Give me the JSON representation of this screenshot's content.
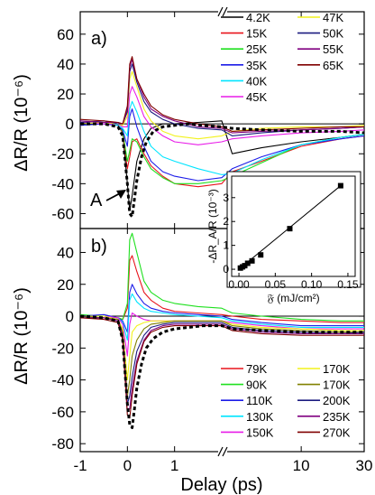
{
  "chart_data": [
    {
      "type": "line",
      "panel_label": "a)",
      "xlabel": "Delay (ps)",
      "ylabel": "ΔR/R (10⁻⁶)",
      "ylim": [
        -70,
        75
      ],
      "yticks": [
        60,
        40,
        20,
        0,
        -20,
        -40,
        -60
      ],
      "xticks_linear": [
        -1,
        0,
        1
      ],
      "xticks_log": [
        10,
        30
      ],
      "xlim_linear": [
        -1,
        2.0
      ],
      "xlim_log": [
        2.5,
        30
      ],
      "annotation": "A",
      "legend_position": "top-right",
      "series": [
        {
          "name": "4.2K",
          "color": "#000000",
          "x": [
            -1,
            -0.5,
            -0.2,
            -0.1,
            0,
            0.05,
            0.1,
            0.2,
            0.35,
            0.5,
            0.75,
            1,
            1.5,
            2,
            3,
            5,
            10,
            20,
            30
          ],
          "y": [
            0,
            0,
            -1,
            -6,
            -40,
            -58,
            -48,
            -25,
            -10,
            -3,
            0,
            0,
            1,
            2,
            -20,
            -16,
            -12,
            -9,
            -7
          ]
        },
        {
          "name": "15K",
          "color": "#e8141c",
          "x": [
            -1,
            -0.5,
            -0.2,
            -0.1,
            0,
            0.05,
            0.1,
            0.2,
            0.35,
            0.5,
            0.75,
            1,
            1.5,
            2,
            3,
            5,
            10,
            20,
            30
          ],
          "y": [
            1,
            0,
            -1,
            -6,
            -30,
            -22,
            -12,
            -10,
            -20,
            -28,
            -35,
            -40,
            -42,
            -40,
            -32,
            -25,
            -15,
            -10,
            -8
          ]
        },
        {
          "name": "25K",
          "color": "#1fe01f",
          "x": [
            -1,
            -0.5,
            -0.2,
            -0.1,
            0,
            0.05,
            0.1,
            0.2,
            0.35,
            0.5,
            0.75,
            1,
            1.5,
            2,
            3,
            5,
            10,
            20,
            30
          ],
          "y": [
            0,
            1,
            -1,
            -5,
            -25,
            -18,
            -10,
            -12,
            -22,
            -30,
            -36,
            -40,
            -40,
            -38,
            -35,
            -26,
            -14,
            -9,
            -7
          ]
        },
        {
          "name": "35K",
          "color": "#1c1ce8",
          "x": [
            -1,
            -0.5,
            -0.2,
            -0.1,
            0,
            0.05,
            0.1,
            0.2,
            0.35,
            0.5,
            0.75,
            1,
            1.5,
            2,
            3,
            5,
            10,
            20,
            30
          ],
          "y": [
            -1,
            0,
            -1,
            -4,
            -15,
            5,
            10,
            -2,
            -15,
            -25,
            -32,
            -35,
            -38,
            -36,
            -30,
            -22,
            -14,
            -10,
            -8
          ]
        },
        {
          "name": "40K",
          "color": "#00e5ff",
          "x": [
            -1,
            -0.5,
            -0.2,
            -0.1,
            0,
            0.05,
            0.1,
            0.2,
            0.35,
            0.5,
            0.75,
            1,
            1.5,
            2,
            3,
            5,
            10,
            20,
            30
          ],
          "y": [
            0,
            1,
            -1,
            -3,
            -8,
            10,
            15,
            8,
            -5,
            -15,
            -22,
            -25,
            -30,
            -34,
            -33,
            -24,
            -14,
            -9,
            -7
          ]
        },
        {
          "name": "45K",
          "color": "#e81ce8",
          "x": [
            -1,
            -0.5,
            -0.2,
            -0.1,
            0,
            0.05,
            0.1,
            0.2,
            0.35,
            0.5,
            0.75,
            1,
            1.5,
            2,
            3,
            5,
            10,
            20,
            30
          ],
          "y": [
            1,
            0,
            0,
            -2,
            -2,
            20,
            25,
            18,
            5,
            -2,
            -8,
            -12,
            -14,
            -12,
            -10,
            -8,
            -6,
            -5,
            -4
          ]
        },
        {
          "name": "47K",
          "color": "#f2f21c",
          "x": [
            -1,
            -0.5,
            -0.2,
            -0.1,
            0,
            0.05,
            0.1,
            0.2,
            0.35,
            0.5,
            0.75,
            1,
            1.5,
            2,
            3,
            5,
            10,
            20,
            30
          ],
          "y": [
            0,
            1,
            0,
            -1,
            5,
            30,
            35,
            25,
            10,
            2,
            -5,
            -8,
            -10,
            -8,
            -5,
            -3,
            -2,
            -2,
            -1
          ]
        },
        {
          "name": "50K",
          "color": "#1c1c80",
          "x": [
            -1,
            -0.5,
            -0.2,
            -0.1,
            0,
            0.05,
            0.1,
            0.2,
            0.35,
            0.5,
            0.75,
            1,
            1.5,
            2,
            3,
            5,
            10,
            20,
            30
          ],
          "y": [
            1,
            2,
            0,
            0,
            8,
            35,
            40,
            28,
            15,
            8,
            3,
            0,
            -3,
            -4,
            -8,
            -6,
            -4,
            -3,
            -2
          ]
        },
        {
          "name": "55K",
          "color": "#800080",
          "x": [
            -1,
            -0.5,
            -0.2,
            -0.1,
            0,
            0.05,
            0.1,
            0.2,
            0.35,
            0.5,
            0.75,
            1,
            1.5,
            2,
            3,
            5,
            10,
            20,
            30
          ],
          "y": [
            2,
            1,
            1,
            0,
            10,
            38,
            43,
            30,
            18,
            10,
            5,
            2,
            -2,
            -3,
            -6,
            -5,
            -4,
            -3,
            -2
          ]
        },
        {
          "name": "65K",
          "color": "#800000",
          "x": [
            -1,
            -0.5,
            -0.2,
            -0.1,
            0,
            0.05,
            0.1,
            0.2,
            0.35,
            0.5,
            0.75,
            1,
            1.5,
            2,
            3,
            5,
            10,
            20,
            30
          ],
          "y": [
            3,
            2,
            1,
            0,
            12,
            40,
            45,
            30,
            20,
            12,
            6,
            3,
            0,
            -2,
            -5,
            -4,
            -3,
            -2,
            -2
          ]
        },
        {
          "name": "",
          "color": "#000000",
          "dashed": true,
          "x": [
            -1,
            -0.5,
            -0.2,
            -0.1,
            0,
            0.05,
            0.1,
            0.15,
            0.2,
            0.3,
            0.4,
            0.55,
            0.75,
            1,
            1.3,
            1.6,
            2,
            3,
            5,
            10,
            20,
            30
          ],
          "y": [
            0,
            0,
            -2,
            -8,
            -40,
            -60,
            -62,
            -50,
            -38,
            -22,
            -12,
            -5,
            -2,
            -1,
            0,
            -1,
            -2,
            -3,
            -4,
            -5,
            -5,
            -6
          ]
        }
      ]
    },
    {
      "type": "line",
      "panel_label": "b)",
      "xlabel": "Delay (ps)",
      "ylabel": "ΔR/R (10⁻⁶)",
      "ylim": [
        -85,
        55
      ],
      "yticks": [
        40,
        20,
        0,
        -20,
        -40,
        -60,
        -80
      ],
      "xticks_linear": [
        -1,
        0,
        1
      ],
      "xticks_log": [
        10,
        30
      ],
      "xlim_linear": [
        -1,
        2.0
      ],
      "xlim_log": [
        2.5,
        30
      ],
      "legend_position": "bottom",
      "series": [
        {
          "name": "79K",
          "color": "#e8141c",
          "x": [
            -1,
            -0.5,
            -0.2,
            -0.1,
            0,
            0.05,
            0.1,
            0.2,
            0.35,
            0.5,
            0.75,
            1,
            1.5,
            2,
            3,
            5,
            10,
            20,
            30
          ],
          "y": [
            0,
            0,
            -1,
            -2,
            5,
            35,
            38,
            28,
            15,
            10,
            5,
            3,
            2,
            1,
            0,
            -2,
            -3,
            -4,
            -4
          ]
        },
        {
          "name": "90K",
          "color": "#1fe01f",
          "x": [
            -1,
            -0.5,
            -0.2,
            -0.1,
            0,
            0.05,
            0.1,
            0.2,
            0.35,
            0.5,
            0.75,
            1,
            1.5,
            2,
            3,
            5,
            10,
            20,
            30
          ],
          "y": [
            1,
            0,
            -1,
            -2,
            8,
            48,
            52,
            40,
            22,
            15,
            10,
            8,
            6,
            5,
            2,
            0,
            -2,
            -3,
            -3
          ]
        },
        {
          "name": "110K",
          "color": "#1c1ce8",
          "x": [
            -1,
            -0.5,
            -0.2,
            -0.1,
            0,
            0.05,
            0.1,
            0.2,
            0.35,
            0.5,
            0.75,
            1,
            1.5,
            2,
            3,
            5,
            10,
            20,
            30
          ],
          "y": [
            0,
            1,
            -1,
            -3,
            -10,
            15,
            20,
            14,
            8,
            5,
            3,
            2,
            1,
            0,
            -2,
            -4,
            -6,
            -6,
            -6
          ]
        },
        {
          "name": "130K",
          "color": "#00e5ff",
          "x": [
            -1,
            -0.5,
            -0.2,
            -0.1,
            0,
            0.05,
            0.1,
            0.2,
            0.35,
            0.5,
            0.75,
            1,
            1.5,
            2,
            3,
            5,
            10,
            20,
            30
          ],
          "y": [
            0,
            0,
            -1,
            -4,
            -15,
            10,
            14,
            9,
            5,
            3,
            2,
            1,
            0,
            -1,
            -3,
            -5,
            -7,
            -7,
            -7
          ]
        },
        {
          "name": "150K",
          "color": "#e81ce8",
          "x": [
            -1,
            -0.5,
            -0.2,
            -0.1,
            0,
            0.05,
            0.1,
            0.2,
            0.35,
            0.5,
            0.75,
            1,
            1.5,
            2,
            3,
            5,
            10,
            20,
            30
          ],
          "y": [
            0,
            0,
            -1,
            -5,
            -25,
            -5,
            2,
            0,
            -2,
            -3,
            -3,
            -3,
            -3,
            -3,
            -4,
            -6,
            -8,
            -8,
            -8
          ]
        },
        {
          "name": "170K",
          "color": "#f2f21c",
          "x": [
            -1,
            -0.5,
            -0.2,
            -0.1,
            0,
            0.05,
            0.1,
            0.2,
            0.35,
            0.5,
            0.75,
            1,
            1.5,
            2,
            3,
            5,
            10,
            20,
            30
          ],
          "y": [
            0,
            0,
            -2,
            -8,
            -40,
            -25,
            -10,
            -6,
            -4,
            -3,
            -3,
            -3,
            -3,
            -3,
            -5,
            -7,
            -8,
            -9,
            -9
          ]
        },
        {
          "name": "170K",
          "color": "#808000",
          "x": [
            -1,
            -0.5,
            -0.2,
            -0.1,
            0,
            0.05,
            0.1,
            0.2,
            0.35,
            0.5,
            0.75,
            1,
            1.5,
            2,
            3,
            5,
            10,
            20,
            30
          ],
          "y": [
            0,
            -1,
            -2,
            -10,
            -50,
            -40,
            -25,
            -15,
            -8,
            -5,
            -4,
            -3,
            -3,
            -3,
            -6,
            -8,
            -9,
            -10,
            -10
          ]
        },
        {
          "name": "200K",
          "color": "#1c1c80",
          "x": [
            -1,
            -0.5,
            -0.2,
            -0.1,
            0,
            0.05,
            0.1,
            0.2,
            0.35,
            0.5,
            0.75,
            1,
            1.5,
            2,
            3,
            5,
            10,
            20,
            30
          ],
          "y": [
            -1,
            -1,
            -3,
            -12,
            -55,
            -50,
            -38,
            -22,
            -12,
            -7,
            -5,
            -4,
            -4,
            -4,
            -7,
            -9,
            -10,
            -11,
            -10
          ]
        },
        {
          "name": "235K",
          "color": "#800080",
          "x": [
            -1,
            -0.5,
            -0.2,
            -0.1,
            0,
            0.05,
            0.1,
            0.2,
            0.35,
            0.5,
            0.75,
            1,
            1.5,
            2,
            3,
            5,
            10,
            20,
            30
          ],
          "y": [
            -1,
            -1,
            -3,
            -14,
            -60,
            -58,
            -45,
            -28,
            -15,
            -9,
            -6,
            -5,
            -5,
            -5,
            -8,
            -10,
            -11,
            -11,
            -11
          ]
        },
        {
          "name": "270K",
          "color": "#800000",
          "x": [
            -1,
            -0.5,
            -0.2,
            -0.1,
            0,
            0.05,
            0.1,
            0.2,
            0.35,
            0.5,
            0.75,
            1,
            1.5,
            2,
            3,
            5,
            10,
            20,
            30
          ],
          "y": [
            -1,
            -2,
            -4,
            -15,
            -62,
            -64,
            -50,
            -30,
            -16,
            -10,
            -7,
            -6,
            -6,
            -6,
            -9,
            -11,
            -12,
            -12,
            -12
          ]
        },
        {
          "name": "",
          "color": "#000000",
          "dashed": true,
          "x": [
            -1,
            -0.5,
            -0.2,
            -0.1,
            0,
            0.05,
            0.1,
            0.15,
            0.2,
            0.3,
            0.4,
            0.55,
            0.75,
            1,
            1.3,
            1.6,
            2,
            3,
            5,
            10,
            20,
            30
          ],
          "y": [
            0,
            -1,
            -3,
            -15,
            -55,
            -68,
            -70,
            -58,
            -45,
            -30,
            -20,
            -14,
            -10,
            -8,
            -7,
            -6,
            -6,
            -8,
            -9,
            -10,
            -10,
            -10
          ]
        }
      ]
    },
    {
      "type": "scatter",
      "inset": true,
      "xlabel": "𝔉 (mJ/cm²)",
      "ylabel": "-ΔR_A/R (10⁻³)",
      "xlim": [
        -0.01,
        0.16
      ],
      "ylim": [
        -0.3,
        3.9
      ],
      "xticks": [
        0.0,
        0.05,
        0.1,
        0.15
      ],
      "xtick_labels": [
        "0.00",
        "0.05",
        "0.10",
        "0.15"
      ],
      "yticks": [
        0,
        1,
        2,
        3
      ],
      "x": [
        0.002,
        0.005,
        0.008,
        0.012,
        0.018,
        0.03,
        0.07,
        0.14
      ],
      "y": [
        0.05,
        0.1,
        0.15,
        0.25,
        0.35,
        0.6,
        1.7,
        3.5
      ],
      "fit": [
        [
          0,
          0
        ],
        [
          0.14,
          3.5
        ]
      ]
    }
  ]
}
